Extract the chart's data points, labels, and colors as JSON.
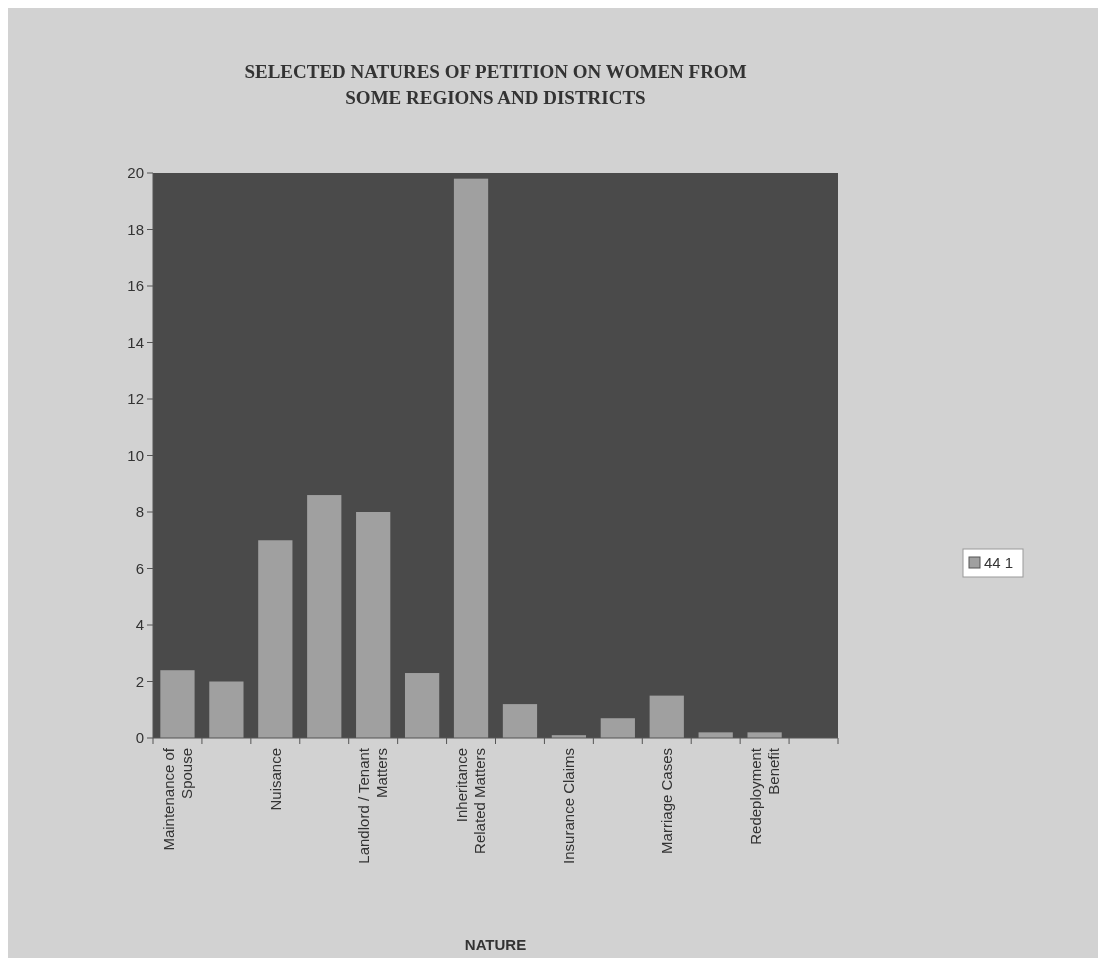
{
  "chart_data": {
    "type": "bar",
    "title": "SELECTED  NATURES OF PETITION ON WOMEN FROM SOME REGIONS AND DISTRICTS",
    "xlabel": "NATURE",
    "categories": [
      "Maintenance of Spouse",
      null,
      "Nuisance",
      null,
      "Landlord / Tenant Matters",
      null,
      "Inheritance Related Matters",
      null,
      "Insurance Claims",
      null,
      "Marriage Cases",
      null,
      "Redeployment Benefit",
      null
    ],
    "series": [
      {
        "name": "44 1",
        "color": "#a0a0a0",
        "values": [
          2.4,
          2.0,
          7.0,
          8.6,
          8.0,
          2.3,
          19.8,
          1.2,
          0.1,
          0.7,
          1.5,
          0.2,
          0.2,
          0
        ]
      }
    ],
    "ylim": [
      0,
      20
    ],
    "yticks": [
      0,
      2,
      4,
      6,
      8,
      10,
      12,
      14,
      16,
      18,
      20
    ],
    "grid": false,
    "legend": "right"
  }
}
